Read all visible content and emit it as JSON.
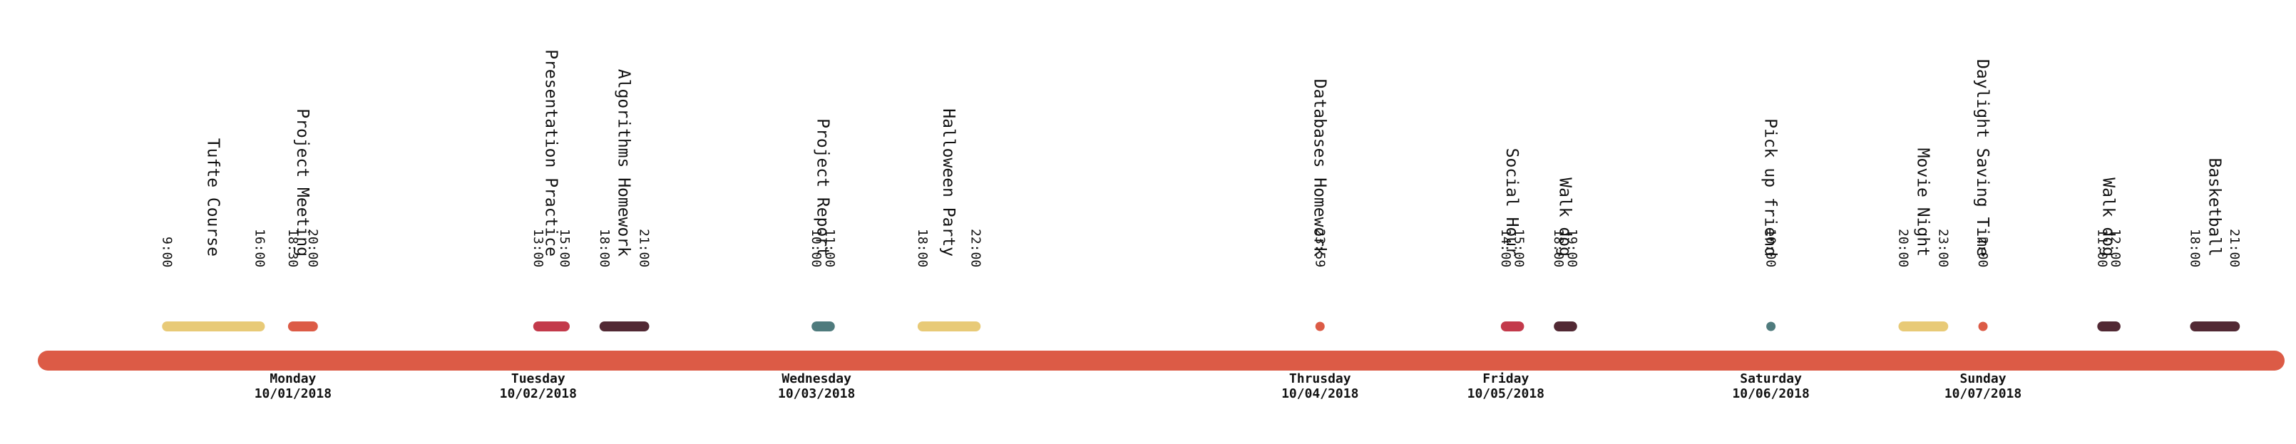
{
  "colors": {
    "axis": "#DC5B46",
    "yellow": "#E8CA77",
    "red": "#C33A4B",
    "plum": "#522934",
    "teal": "#4F7B7D",
    "orange": "#DC5B46"
  },
  "chart_data": {
    "type": "timeline",
    "axis_start": "2018-10-01T00:00",
    "axis_end": "2018-10-08T00:00",
    "days": [
      {
        "name": "Monday",
        "date": "10/01/2018",
        "at": "2018-10-01T18:30"
      },
      {
        "name": "Tuesday",
        "date": "10/02/2018",
        "at": "2018-10-02T13:00"
      },
      {
        "name": "Wednesday",
        "date": "10/03/2018",
        "at": "2018-10-03T10:00"
      },
      {
        "name": "Thrusday",
        "date": "10/04/2018",
        "at": "2018-10-04T23:59"
      },
      {
        "name": "Friday",
        "date": "10/05/2018",
        "at": "2018-10-05T14:00"
      },
      {
        "name": "Saturday",
        "date": "10/06/2018",
        "at": "2018-10-06T10:00"
      },
      {
        "name": "Sunday",
        "date": "10/07/2018",
        "at": "2018-10-07T02:00"
      }
    ],
    "events": [
      {
        "name": "Tufte Course",
        "start": "2018-10-01T09:00",
        "end": "2018-10-01T16:00",
        "start_label": "9:00",
        "end_label": "16:00",
        "color": "yellow"
      },
      {
        "name": "Project Meeting",
        "start": "2018-10-01T18:30",
        "end": "2018-10-01T20:00",
        "start_label": "18:30",
        "end_label": "20:00",
        "color": "orange"
      },
      {
        "name": "Presentation Practice",
        "start": "2018-10-02T13:00",
        "end": "2018-10-02T15:00",
        "start_label": "13:00",
        "end_label": "15:00",
        "color": "red"
      },
      {
        "name": "Algorithms Homework",
        "start": "2018-10-02T18:00",
        "end": "2018-10-02T21:00",
        "start_label": "18:00",
        "end_label": "21:00",
        "color": "plum"
      },
      {
        "name": "Project Report",
        "start": "2018-10-03T10:00",
        "end": "2018-10-03T11:00",
        "start_label": "10:00",
        "end_label": "11:00",
        "color": "teal"
      },
      {
        "name": "Halloween Party",
        "start": "2018-10-03T18:00",
        "end": "2018-10-03T22:00",
        "start_label": "18:00",
        "end_label": "22:00",
        "color": "yellow"
      },
      {
        "name": "Databases Homework",
        "start": "2018-10-04T23:59",
        "end": null,
        "start_label": "23:59",
        "end_label": null,
        "color": "orange"
      },
      {
        "name": "Social Hour",
        "start": "2018-10-05T14:00",
        "end": "2018-10-05T15:00",
        "start_label": "14:00",
        "end_label": "15:00",
        "color": "red"
      },
      {
        "name": "Walk dog",
        "start": "2018-10-05T18:00",
        "end": "2018-10-05T19:00",
        "start_label": "18:00",
        "end_label": "19:00",
        "color": "plum"
      },
      {
        "name": "Pick up friend",
        "start": "2018-10-06T10:00",
        "end": null,
        "start_label": "10:00",
        "end_label": null,
        "color": "teal"
      },
      {
        "name": "Movie Night",
        "start": "2018-10-06T20:00",
        "end": "2018-10-06T23:00",
        "start_label": "20:00",
        "end_label": "23:00",
        "color": "yellow"
      },
      {
        "name": "Daylight Saving Time",
        "start": "2018-10-07T02:00",
        "end": null,
        "start_label": "2:00",
        "end_label": null,
        "color": "orange"
      },
      {
        "name": "Walk dog",
        "start": "2018-10-07T11:00",
        "end": "2018-10-07T12:00",
        "start_label": "11:00",
        "end_label": "12:00",
        "color": "plum"
      },
      {
        "name": "Basketball",
        "start": "2018-10-07T18:00",
        "end": "2018-10-07T21:00",
        "start_label": "18:00",
        "end_label": "21:00",
        "color": "plum"
      }
    ]
  }
}
